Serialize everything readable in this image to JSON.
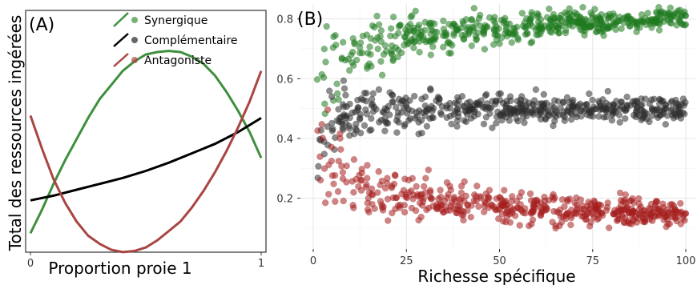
{
  "chart_data": [
    {
      "panel": "(A)",
      "type": "line",
      "xlabel": "Proportion proie 1",
      "ylabel": "Total des ressources ingérées",
      "xticks": [
        "0",
        "1"
      ],
      "xlim": [
        0,
        1
      ],
      "ylim": [
        0,
        1
      ],
      "y_ticks_shown": false,
      "legend": "top-right",
      "series": [
        {
          "name": "Synergique",
          "color": "#3f8f3f",
          "points": [
            [
              0,
              0.07
            ],
            [
              0.05,
              0.17
            ],
            [
              0.1,
              0.28
            ],
            [
              0.15,
              0.38
            ],
            [
              0.2,
              0.47
            ],
            [
              0.25,
              0.56
            ],
            [
              0.3,
              0.64
            ],
            [
              0.35,
              0.7
            ],
            [
              0.4,
              0.76
            ],
            [
              0.45,
              0.8
            ],
            [
              0.5,
              0.83
            ],
            [
              0.55,
              0.84
            ],
            [
              0.6,
              0.845
            ],
            [
              0.65,
              0.84
            ],
            [
              0.7,
              0.82
            ],
            [
              0.75,
              0.79
            ],
            [
              0.8,
              0.74
            ],
            [
              0.85,
              0.67
            ],
            [
              0.9,
              0.59
            ],
            [
              0.95,
              0.5
            ],
            [
              1,
              0.39
            ]
          ]
        },
        {
          "name": "Complémentaire",
          "color": "#000000",
          "points": [
            [
              0,
              0.21
            ],
            [
              0.1,
              0.23
            ],
            [
              0.2,
              0.255
            ],
            [
              0.3,
              0.28
            ],
            [
              0.4,
              0.305
            ],
            [
              0.5,
              0.335
            ],
            [
              0.6,
              0.37
            ],
            [
              0.7,
              0.41
            ],
            [
              0.8,
              0.45
            ],
            [
              0.9,
              0.5
            ],
            [
              1,
              0.56
            ]
          ]
        },
        {
          "name": "Antagoniste",
          "color": "#a94542",
          "points": [
            [
              0,
              0.57
            ],
            [
              0.05,
              0.43
            ],
            [
              0.1,
              0.3
            ],
            [
              0.15,
              0.2
            ],
            [
              0.2,
              0.12
            ],
            [
              0.25,
              0.06
            ],
            [
              0.3,
              0.025
            ],
            [
              0.35,
              0.0
            ],
            [
              0.4,
              -0.01
            ],
            [
              0.45,
              -0.005
            ],
            [
              0.5,
              0.01
            ],
            [
              0.55,
              0.04
            ],
            [
              0.6,
              0.08
            ],
            [
              0.65,
              0.12
            ],
            [
              0.7,
              0.18
            ],
            [
              0.75,
              0.25
            ],
            [
              0.8,
              0.33
            ],
            [
              0.85,
              0.42
            ],
            [
              0.9,
              0.52
            ],
            [
              0.95,
              0.63
            ],
            [
              1,
              0.76
            ]
          ]
        }
      ]
    },
    {
      "panel": "(B)",
      "type": "scatter",
      "xlabel": "Richesse spécifique",
      "ylabel": "",
      "xlim": [
        0,
        100
      ],
      "ylim": [
        0.03,
        0.85
      ],
      "xticks": [
        0,
        25,
        50,
        75,
        100
      ],
      "yticks": [
        0.2,
        0.4,
        0.6,
        0.8
      ],
      "grid": true,
      "series": [
        {
          "name": "Synergique",
          "color": "#1f7a1f",
          "trend": [
            [
              1,
              0.6
            ],
            [
              5,
              0.66
            ],
            [
              10,
              0.68
            ],
            [
              15,
              0.7
            ],
            [
              20,
              0.72
            ],
            [
              25,
              0.74
            ],
            [
              30,
              0.75
            ],
            [
              40,
              0.76
            ],
            [
              50,
              0.77
            ],
            [
              60,
              0.78
            ],
            [
              70,
              0.785
            ],
            [
              80,
              0.79
            ],
            [
              90,
              0.8
            ],
            [
              100,
              0.805
            ]
          ],
          "spread": [
            [
              1,
              0.14
            ],
            [
              10,
              0.08
            ],
            [
              25,
              0.06
            ],
            [
              50,
              0.045
            ],
            [
              100,
              0.03
            ]
          ]
        },
        {
          "name": "Complémentaire",
          "color": "#2e2e2e",
          "trend": [
            [
              1,
              0.4
            ],
            [
              5,
              0.45
            ],
            [
              10,
              0.48
            ],
            [
              20,
              0.49
            ],
            [
              40,
              0.495
            ],
            [
              60,
              0.5
            ],
            [
              80,
              0.5
            ],
            [
              100,
              0.5
            ]
          ],
          "spread": [
            [
              1,
              0.14
            ],
            [
              10,
              0.08
            ],
            [
              25,
              0.06
            ],
            [
              50,
              0.045
            ],
            [
              100,
              0.03
            ]
          ]
        },
        {
          "name": "Antagoniste",
          "color": "#a51f1f",
          "trend": [
            [
              1,
              0.38
            ],
            [
              5,
              0.3
            ],
            [
              10,
              0.27
            ],
            [
              15,
              0.24
            ],
            [
              20,
              0.22
            ],
            [
              30,
              0.2
            ],
            [
              40,
              0.185
            ],
            [
              50,
              0.175
            ],
            [
              60,
              0.165
            ],
            [
              70,
              0.16
            ],
            [
              80,
              0.155
            ],
            [
              90,
              0.15
            ],
            [
              100,
              0.15
            ]
          ],
          "spread": [
            [
              1,
              0.14
            ],
            [
              10,
              0.09
            ],
            [
              25,
              0.07
            ],
            [
              50,
              0.05
            ],
            [
              100,
              0.035
            ]
          ]
        }
      ],
      "points_per_series": 500
    }
  ]
}
